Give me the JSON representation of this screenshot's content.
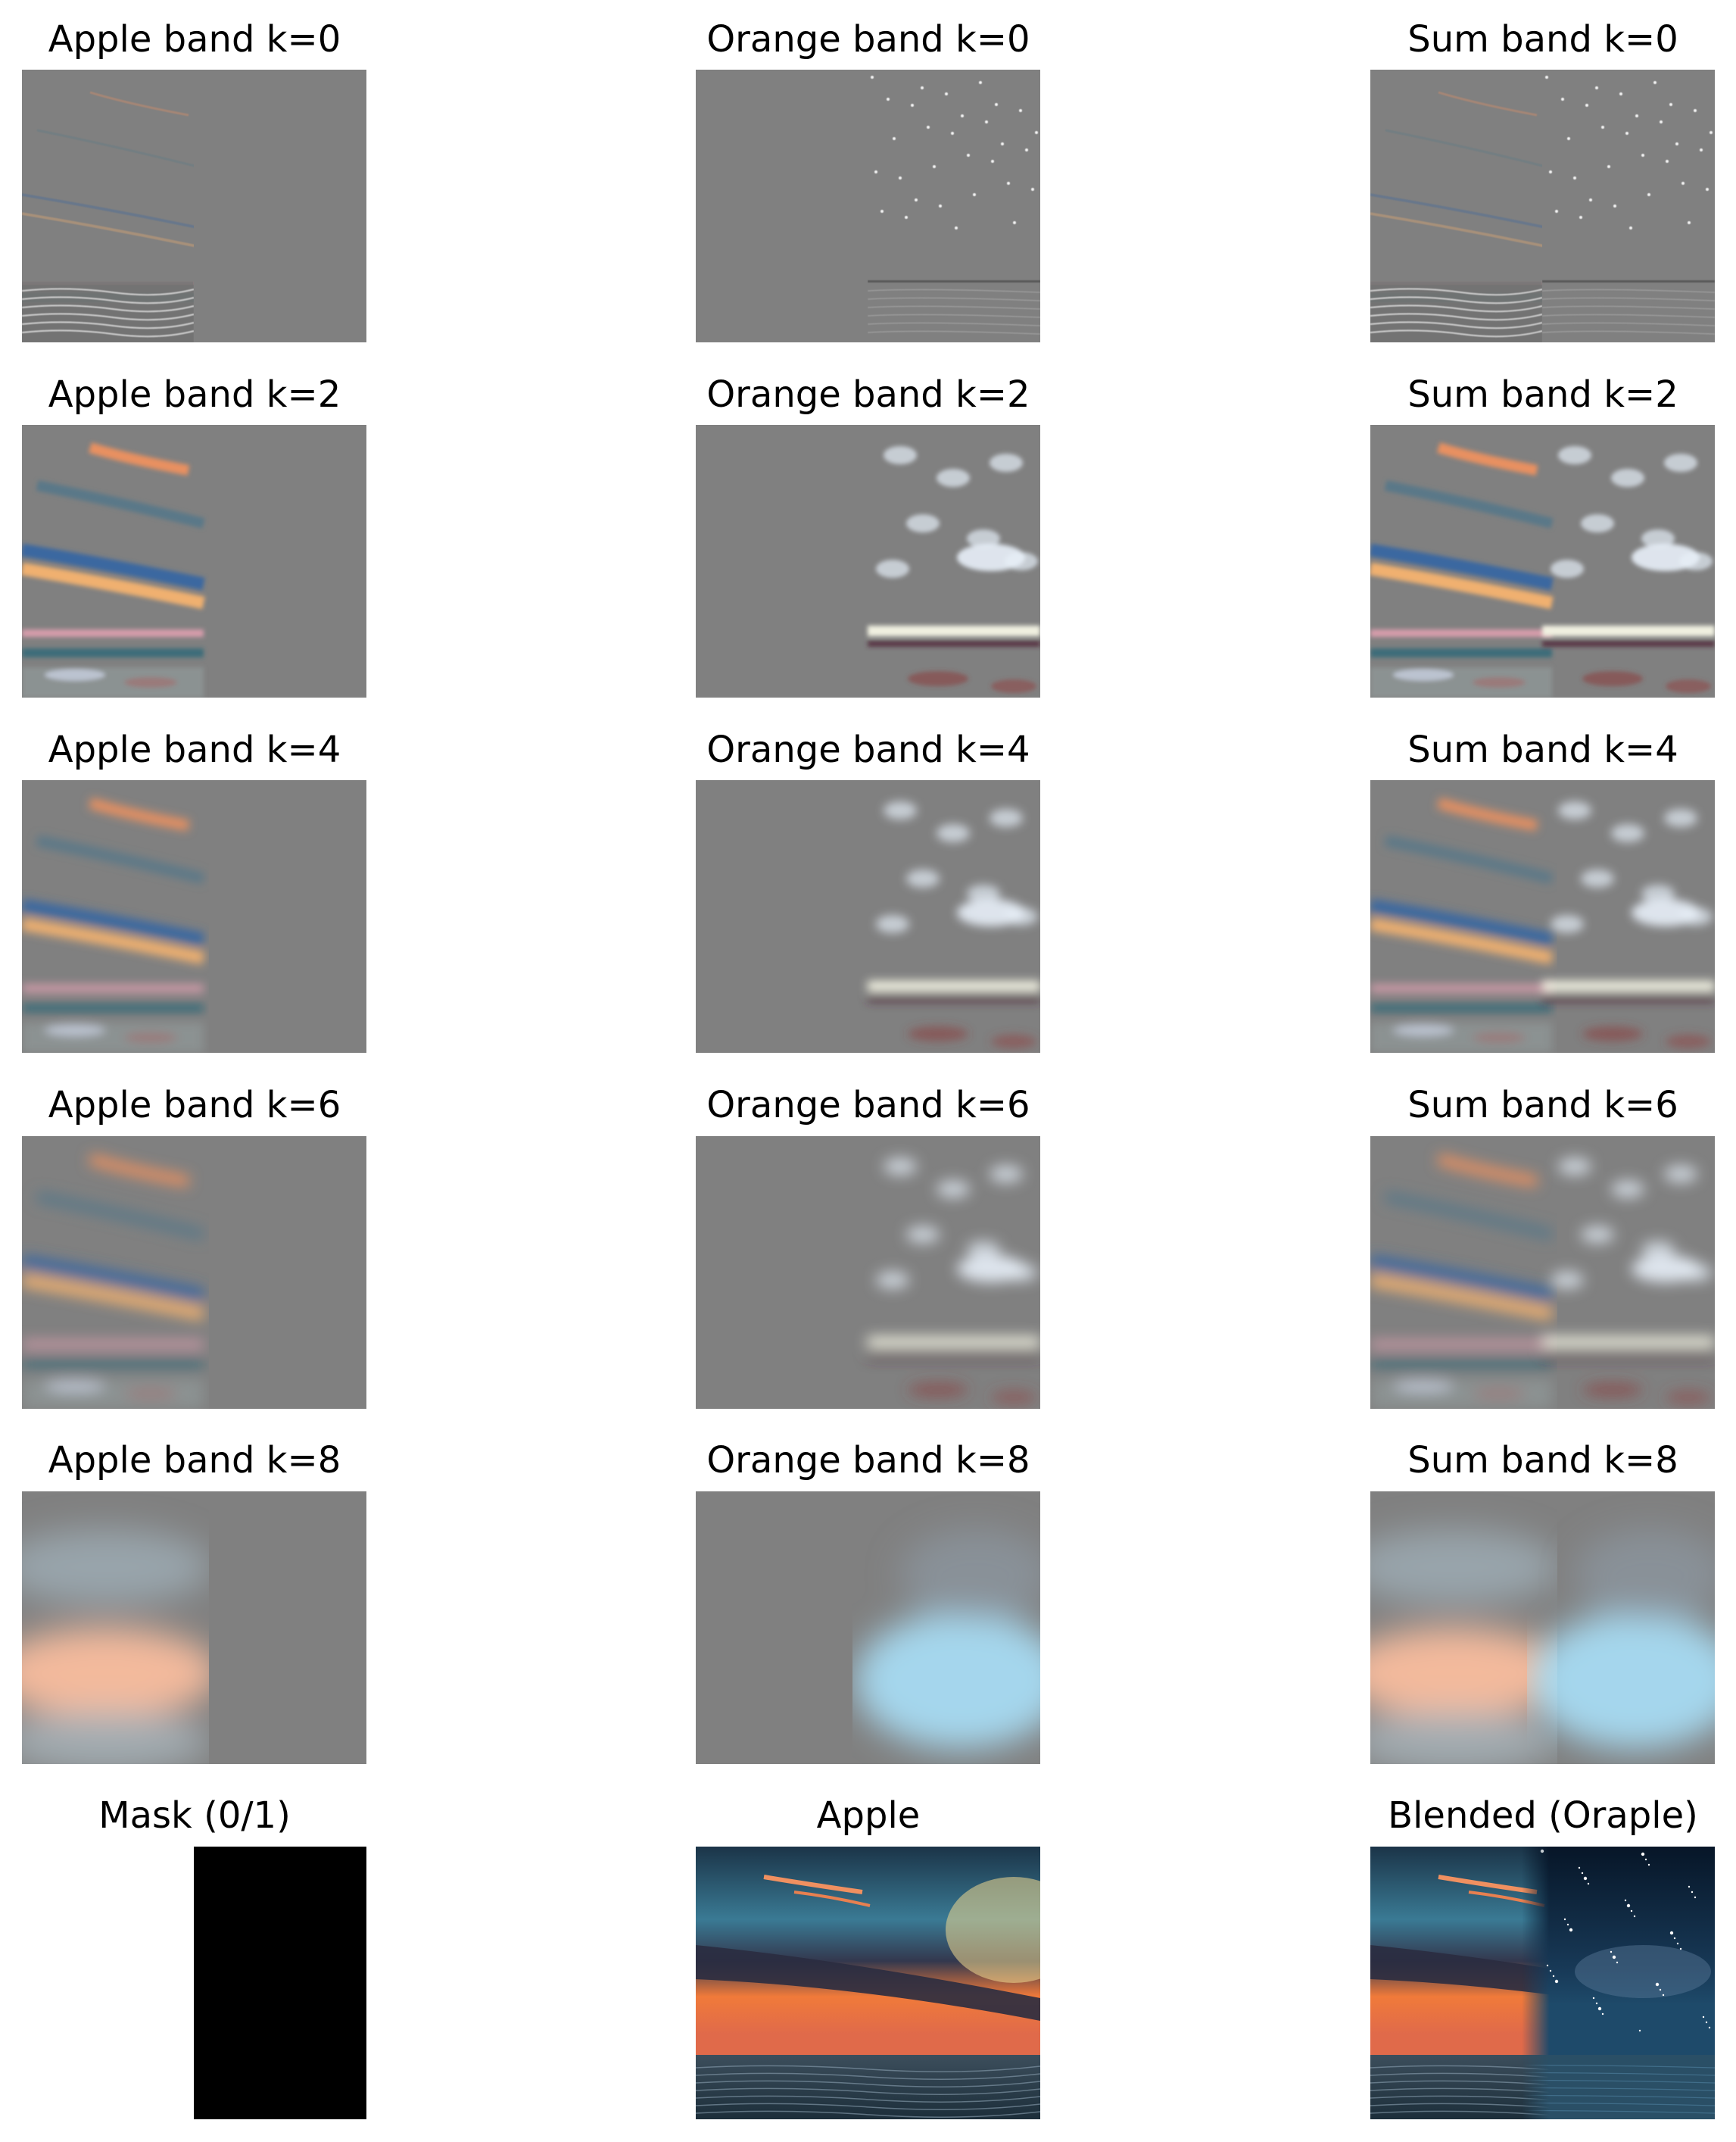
{
  "figure": {
    "rows": [
      {
        "panels": [
          {
            "title": "Apple band k=0",
            "kind": "band",
            "level": 0,
            "side": "left"
          },
          {
            "title": "Orange band k=0",
            "kind": "band",
            "level": 0,
            "side": "right"
          },
          {
            "title": "Sum band k=0",
            "kind": "band",
            "level": 0,
            "side": "both"
          }
        ]
      },
      {
        "panels": [
          {
            "title": "Apple band k=2",
            "kind": "band",
            "level": 2,
            "side": "left"
          },
          {
            "title": "Orange band k=2",
            "kind": "band",
            "level": 2,
            "side": "right"
          },
          {
            "title": "Sum band k=2",
            "kind": "band",
            "level": 2,
            "side": "both"
          }
        ]
      },
      {
        "panels": [
          {
            "title": "Apple band k=4",
            "kind": "band",
            "level": 4,
            "side": "left"
          },
          {
            "title": "Orange band k=4",
            "kind": "band",
            "level": 4,
            "side": "right"
          },
          {
            "title": "Sum band k=4",
            "kind": "band",
            "level": 4,
            "side": "both"
          }
        ]
      },
      {
        "panels": [
          {
            "title": "Apple band k=6",
            "kind": "band",
            "level": 6,
            "side": "left"
          },
          {
            "title": "Orange band k=6",
            "kind": "band",
            "level": 6,
            "side": "right"
          },
          {
            "title": "Sum band k=6",
            "kind": "band",
            "level": 6,
            "side": "both"
          }
        ]
      },
      {
        "panels": [
          {
            "title": "Apple band k=8",
            "kind": "band",
            "level": 8,
            "side": "left"
          },
          {
            "title": "Orange band k=8",
            "kind": "band",
            "level": 8,
            "side": "right"
          },
          {
            "title": "Sum band k=8",
            "kind": "band",
            "level": 8,
            "side": "both"
          }
        ]
      },
      {
        "panels": [
          {
            "title": "Mask (0/1)",
            "kind": "mask"
          },
          {
            "title": "Apple",
            "kind": "apple"
          },
          {
            "title": "Blended (Oraple)",
            "kind": "blend"
          }
        ]
      }
    ],
    "colors": {
      "background": "#ffffff",
      "band_gray": "#808080",
      "mask_black": "#000000",
      "sky_dark": "#1b3448",
      "sky_teal": "#3a7a94",
      "sunset_orange": "#f07a3a",
      "night_sky": "#071628",
      "sea": "#2a4f66"
    }
  }
}
